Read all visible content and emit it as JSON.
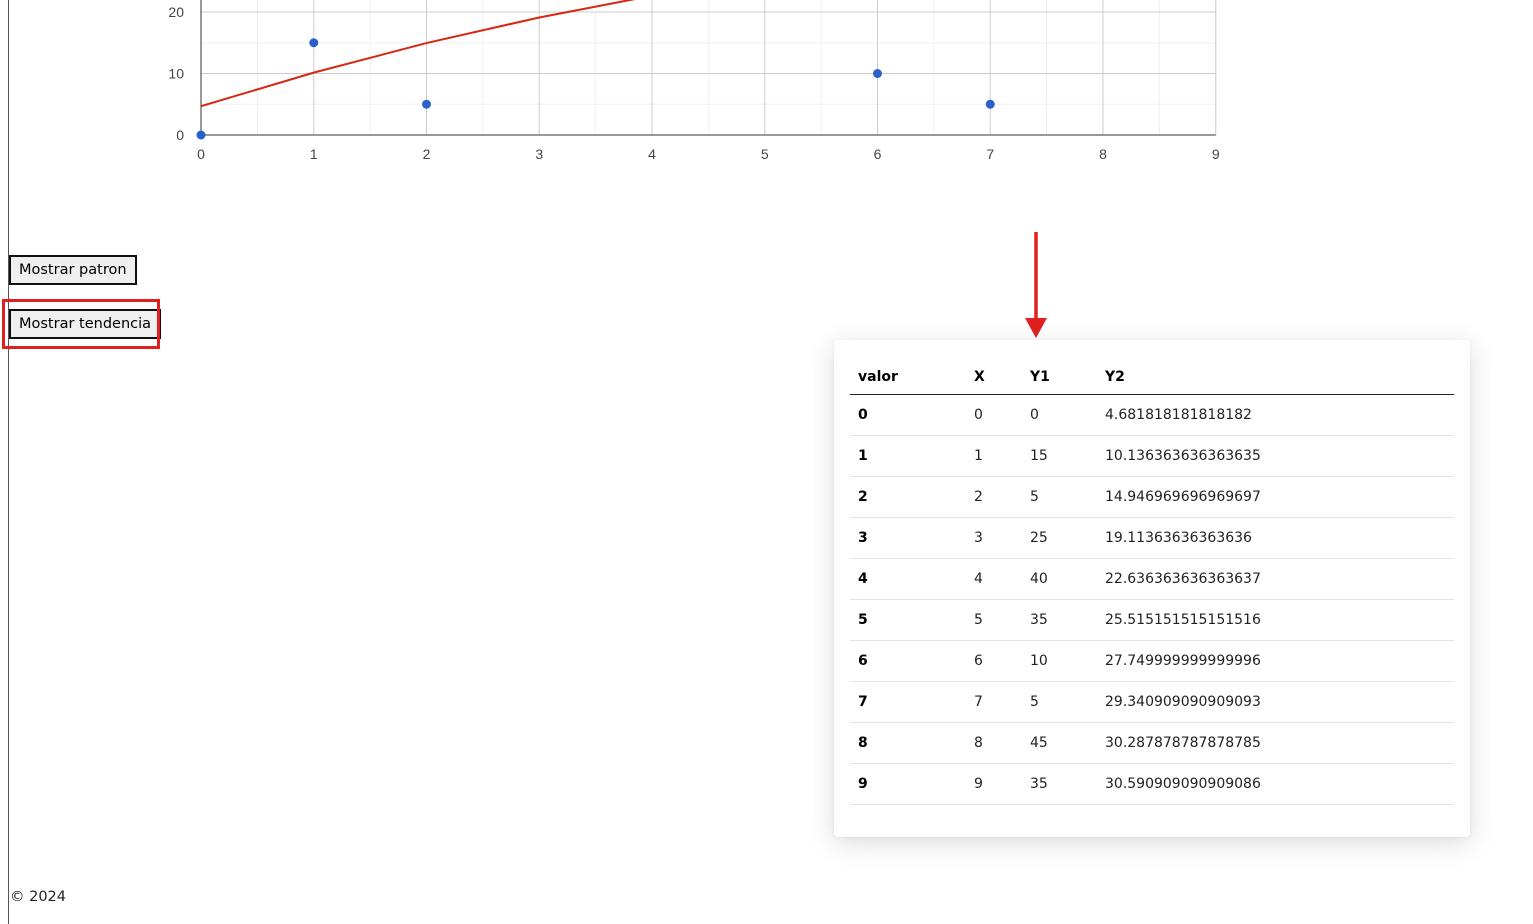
{
  "chart_data": {
    "type": "scatter",
    "x_ticks": [
      0,
      1,
      2,
      3,
      4,
      5,
      6,
      7,
      8,
      9
    ],
    "y_ticks": [
      0,
      10,
      20
    ],
    "xlim": [
      0,
      9
    ],
    "ylim": [
      0,
      20
    ],
    "grid": true,
    "series": [
      {
        "kind": "scatter",
        "color": "#2a5fcc",
        "points": [
          [
            0,
            0
          ],
          [
            1,
            15
          ],
          [
            2,
            5
          ],
          [
            6,
            10
          ],
          [
            7,
            5
          ]
        ]
      },
      {
        "kind": "line",
        "color": "#d92612",
        "points": [
          [
            0,
            4.68
          ],
          [
            1,
            10.14
          ],
          [
            2,
            14.95
          ],
          [
            3,
            19.11
          ],
          [
            4,
            22.64
          ]
        ]
      }
    ]
  },
  "buttons": {
    "patron": "Mostrar patron",
    "tendencia": "Mostrar tendencia"
  },
  "highlight_color": "#e02020",
  "table": {
    "headers": [
      "valor",
      "X",
      "Y1",
      "Y2"
    ],
    "rows": [
      [
        "0",
        "0",
        "0",
        "4.681818181818182"
      ],
      [
        "1",
        "1",
        "15",
        "10.136363636363635"
      ],
      [
        "2",
        "2",
        "5",
        "14.946969696969697"
      ],
      [
        "3",
        "3",
        "25",
        "19.11363636363636"
      ],
      [
        "4",
        "4",
        "40",
        "22.636363636363637"
      ],
      [
        "5",
        "5",
        "35",
        "25.515151515151516"
      ],
      [
        "6",
        "6",
        "10",
        "27.749999999999996"
      ],
      [
        "7",
        "7",
        "5",
        "29.340909090909093"
      ],
      [
        "8",
        "8",
        "45",
        "30.287878787878785"
      ],
      [
        "9",
        "9",
        "35",
        "30.590909090909086"
      ]
    ]
  },
  "footer": "© 2024"
}
